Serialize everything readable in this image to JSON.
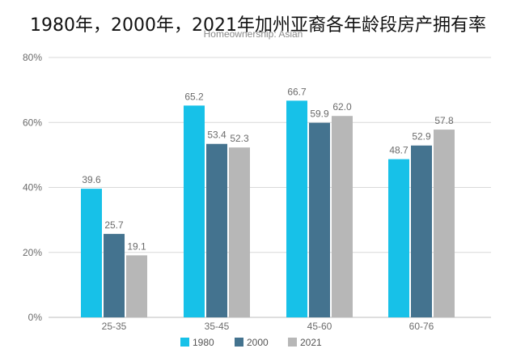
{
  "chart_data": {
    "type": "bar",
    "title": "1980年，2000年，2021年加州亚裔各年龄段房产拥有率",
    "subtitle": "Homeownership: Asian",
    "categories": [
      "25-35",
      "35-45",
      "45-60",
      "60-76"
    ],
    "series": [
      {
        "name": "1980",
        "color": "#17c1e8",
        "values": [
          39.6,
          65.2,
          66.7,
          48.7
        ]
      },
      {
        "name": "2000",
        "color": "#44738f",
        "values": [
          25.7,
          53.4,
          59.9,
          52.9
        ]
      },
      {
        "name": "2021",
        "color": "#b7b7b7",
        "values": [
          19.1,
          52.3,
          62.0,
          57.8
        ]
      }
    ],
    "y_ticks": [
      "0%",
      "20%",
      "40%",
      "60%",
      "80%"
    ],
    "ylim": [
      0,
      80
    ],
    "grid": true,
    "legend": "bottom-center"
  }
}
